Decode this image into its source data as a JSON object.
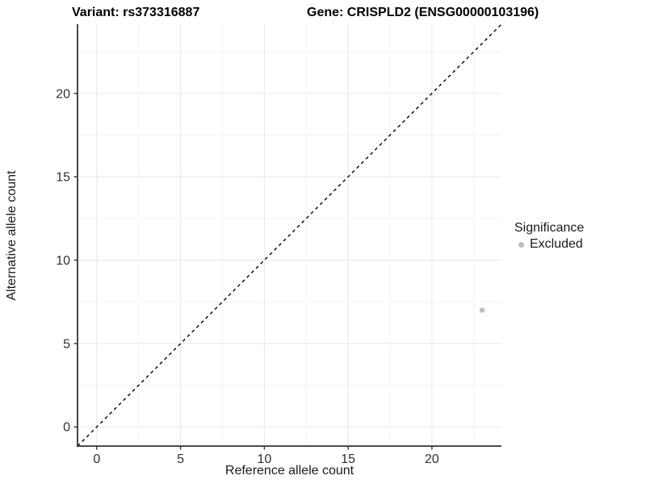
{
  "header": {
    "variant_title": "Variant: rs373316887",
    "gene_title": "Gene: CRISPLD2 (ENSG00000103196)"
  },
  "chart_data": {
    "type": "scatter",
    "xlabel": "Reference allele count",
    "ylabel": "Alternative allele count",
    "xlim": [
      0,
      23
    ],
    "ylim": [
      0,
      23
    ],
    "expansion_frac": 0.05,
    "x_ticks": [
      0,
      5,
      10,
      15,
      20
    ],
    "y_ticks": [
      0,
      5,
      10,
      15,
      20
    ],
    "x_minor_ticks": [
      2.5,
      7.5,
      12.5,
      17.5,
      22.5
    ],
    "y_minor_ticks": [
      2.5,
      7.5,
      12.5,
      17.5,
      22.5
    ],
    "grid": true,
    "identity_line": {
      "slope": 1,
      "intercept": 0,
      "style": "dashed",
      "color": "#000000"
    },
    "series": [
      {
        "name": "Excluded",
        "color": "#bdbdbd",
        "points": [
          {
            "x": 23,
            "y": 7
          }
        ]
      }
    ],
    "legend": {
      "title": "Significance",
      "position": "right",
      "items": [
        {
          "label": "Excluded",
          "color": "#bdbdbd"
        }
      ]
    }
  },
  "style_colors": {
    "axis_line": "#333333",
    "tick_mark": "#333333",
    "tick_label": "#303030",
    "grid_major": "#e8e8e8",
    "grid_minor": "#f3f3f3",
    "point": "#bdbdbd"
  }
}
